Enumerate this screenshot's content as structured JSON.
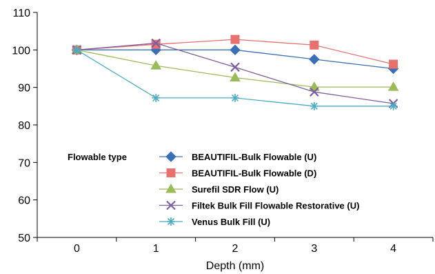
{
  "chart_data": {
    "type": "line",
    "title": "",
    "xlabel": "Depth (mm)",
    "ylabel": "",
    "x": [
      0,
      1,
      2,
      3,
      4
    ],
    "x_tick_labels": [
      "0",
      "1",
      "2",
      "3",
      "4"
    ],
    "ylim": [
      50,
      110
    ],
    "y_ticks": [
      50,
      60,
      70,
      80,
      90,
      100,
      110
    ],
    "y_tick_labels": [
      "50",
      "60",
      "70",
      "80",
      "90",
      "100",
      "110"
    ],
    "grid": false,
    "legend": {
      "title": "Flowable type",
      "placement": "bottom-center"
    },
    "series": [
      {
        "name": "BEAUTIFIL-Bulk Flowable (U)",
        "values": [
          100,
          100,
          100,
          97.5,
          95
        ],
        "color": "#3a6fb7",
        "marker": "diamond"
      },
      {
        "name": "BEAUTIFIL-Bulk Flowable (D)",
        "values": [
          100,
          101.5,
          102.8,
          101.3,
          96.2
        ],
        "color": "#e8706e",
        "marker": "square"
      },
      {
        "name": "Surefil SDR Flow (U)",
        "values": [
          100,
          95.8,
          92.6,
          90.1,
          90.1
        ],
        "color": "#9bbb59",
        "marker": "triangle"
      },
      {
        "name": "Filtek Bulk Fill Flowable Restorative (U)",
        "values": [
          100,
          101.8,
          95.4,
          88.8,
          85.7
        ],
        "color": "#7d5fa0",
        "marker": "x"
      },
      {
        "name": "Venus Bulk Fill (U)",
        "values": [
          100,
          87.2,
          87.2,
          85,
          85
        ],
        "color": "#4bacc6",
        "marker": "star"
      }
    ]
  }
}
